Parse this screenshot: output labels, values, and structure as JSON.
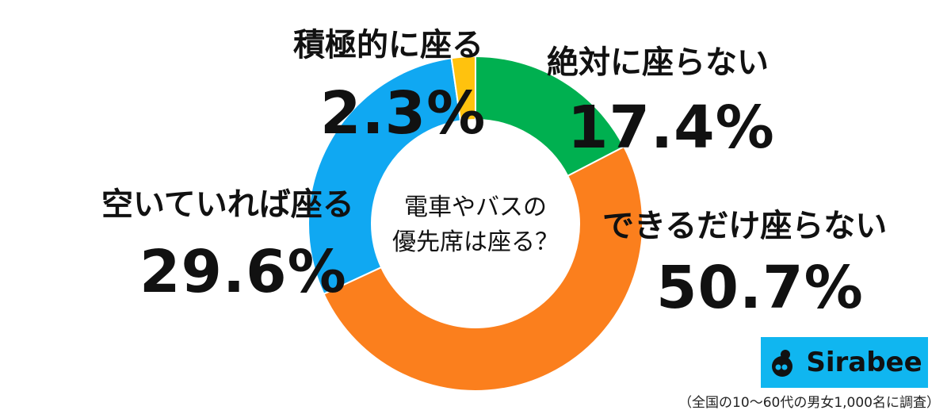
{
  "chart_data": {
    "type": "pie",
    "title": "電車やバスの優先席は座る？",
    "categories": [
      "絶対に座らない",
      "できるだけ座らない",
      "空いていれば座る",
      "積極的に座る"
    ],
    "values": [
      17.4,
      50.7,
      29.6,
      2.3
    ],
    "value_labels": [
      "17.4%",
      "50.7%",
      "29.6%",
      "2.3%"
    ],
    "colors": [
      "#00b050",
      "#fb7f1d",
      "#10a8f2",
      "#ffc20e"
    ],
    "donut": true
  },
  "center": {
    "line1": "電車やバスの",
    "line2": "優先席は座る？"
  },
  "logo": {
    "text": "Sirabee",
    "icon": "sirabee-logo-icon",
    "bg": "#10b6f0"
  },
  "note": "（全国の10〜60代の男女1,000名に調査）"
}
